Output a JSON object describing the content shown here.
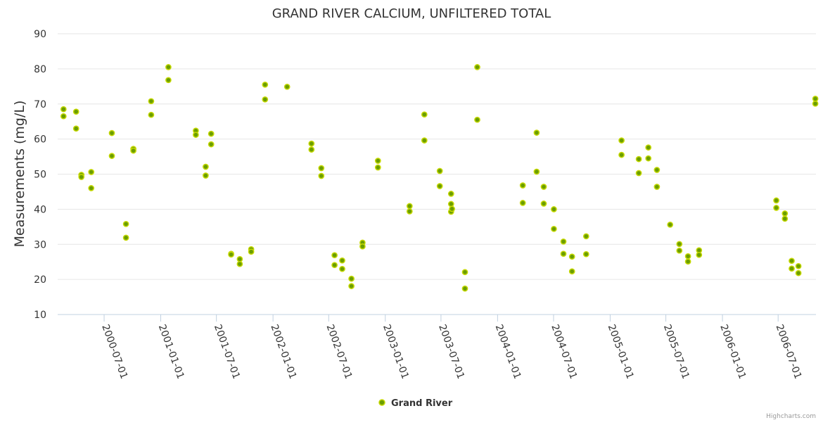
{
  "chart_data": {
    "type": "scatter",
    "title": "GRAND RIVER CALCIUM, UNFILTERED TOTAL",
    "ylabel": "Measurements (mg/L)",
    "xlabel": "",
    "ylim": [
      10,
      90
    ],
    "y_ticks": [
      "10",
      "20",
      "30",
      "40",
      "50",
      "60",
      "70",
      "80",
      "90"
    ],
    "x_ticks": [
      "2000-07-01",
      "2001-01-01",
      "2001-07-01",
      "2002-01-01",
      "2002-07-01",
      "2003-01-01",
      "2003-07-01",
      "2004-01-01",
      "2004-07-01",
      "2005-01-01",
      "2005-07-01",
      "2006-01-01",
      "2006-07-01"
    ],
    "xlim": [
      "2000-02-01",
      "2006-11-01"
    ],
    "grid": true,
    "legend": "bottom-center",
    "series": [
      {
        "name": "Grand River",
        "color": "#6b9e00",
        "points": [
          [
            "2000-02-20",
            68.5
          ],
          [
            "2000-02-20",
            66.5
          ],
          [
            "2000-04-01",
            67.8
          ],
          [
            "2000-04-01",
            63.0
          ],
          [
            "2000-04-18",
            49.8
          ],
          [
            "2000-04-18",
            49.2
          ],
          [
            "2000-05-20",
            50.6
          ],
          [
            "2000-05-20",
            46.0
          ],
          [
            "2000-07-26",
            61.7
          ],
          [
            "2000-07-26",
            55.2
          ],
          [
            "2000-09-10",
            35.8
          ],
          [
            "2000-09-10",
            31.9
          ],
          [
            "2000-10-04",
            57.2
          ],
          [
            "2000-10-04",
            56.7
          ],
          [
            "2000-12-01",
            70.8
          ],
          [
            "2000-12-01",
            66.9
          ],
          [
            "2001-01-26",
            80.5
          ],
          [
            "2001-01-26",
            76.8
          ],
          [
            "2001-04-25",
            62.4
          ],
          [
            "2001-04-25",
            61.2
          ],
          [
            "2001-05-27",
            52.1
          ],
          [
            "2001-05-27",
            49.6
          ],
          [
            "2001-06-14",
            61.5
          ],
          [
            "2001-06-14",
            58.5
          ],
          [
            "2001-08-18",
            27.3
          ],
          [
            "2001-08-18",
            27.1
          ],
          [
            "2001-09-15",
            25.8
          ],
          [
            "2001-09-15",
            24.4
          ],
          [
            "2001-10-22",
            28.6
          ],
          [
            "2001-10-22",
            27.9
          ],
          [
            "2001-12-06",
            75.5
          ],
          [
            "2001-12-06",
            71.3
          ],
          [
            "2002-02-16",
            74.9
          ],
          [
            "2002-05-06",
            58.7
          ],
          [
            "2002-05-06",
            57.0
          ],
          [
            "2002-06-07",
            51.7
          ],
          [
            "2002-06-07",
            49.5
          ],
          [
            "2002-07-20",
            26.9
          ],
          [
            "2002-07-20",
            24.1
          ],
          [
            "2002-08-14",
            25.4
          ],
          [
            "2002-08-14",
            23.0
          ],
          [
            "2002-09-13",
            20.2
          ],
          [
            "2002-09-13",
            18.1
          ],
          [
            "2002-10-19",
            30.5
          ],
          [
            "2002-10-19",
            29.4
          ],
          [
            "2002-12-08",
            53.8
          ],
          [
            "2002-12-08",
            51.9
          ],
          [
            "2003-03-21",
            40.9
          ],
          [
            "2003-03-21",
            39.4
          ],
          [
            "2003-05-08",
            67.0
          ],
          [
            "2003-05-08",
            59.6
          ],
          [
            "2003-06-27",
            50.9
          ],
          [
            "2003-06-27",
            46.6
          ],
          [
            "2003-08-03",
            44.4
          ],
          [
            "2003-08-03",
            41.5
          ],
          [
            "2003-08-03",
            39.3
          ],
          [
            "2003-08-06",
            40.1
          ],
          [
            "2003-09-17",
            22.1
          ],
          [
            "2003-09-17",
            17.4
          ],
          [
            "2003-10-27",
            80.5
          ],
          [
            "2003-10-27",
            65.5
          ],
          [
            "2004-03-23",
            46.8
          ],
          [
            "2004-03-23",
            41.8
          ],
          [
            "2004-05-07",
            61.8
          ],
          [
            "2004-05-07",
            50.7
          ],
          [
            "2004-05-30",
            46.4
          ],
          [
            "2004-05-30",
            41.6
          ],
          [
            "2004-07-02",
            40.0
          ],
          [
            "2004-07-02",
            34.4
          ],
          [
            "2004-08-02",
            30.8
          ],
          [
            "2004-08-02",
            27.3
          ],
          [
            "2004-08-30",
            26.5
          ],
          [
            "2004-08-30",
            22.3
          ],
          [
            "2004-10-15",
            32.3
          ],
          [
            "2004-10-15",
            27.2
          ],
          [
            "2005-02-07",
            59.6
          ],
          [
            "2005-02-07",
            55.5
          ],
          [
            "2005-04-04",
            54.3
          ],
          [
            "2005-04-04",
            50.3
          ],
          [
            "2005-05-05",
            57.6
          ],
          [
            "2005-05-05",
            54.5
          ],
          [
            "2005-06-02",
            51.2
          ],
          [
            "2005-06-02",
            46.4
          ],
          [
            "2005-07-15",
            35.6
          ],
          [
            "2005-08-14",
            30.1
          ],
          [
            "2005-08-14",
            28.2
          ],
          [
            "2005-09-11",
            26.6
          ],
          [
            "2005-09-11",
            25.1
          ],
          [
            "2005-10-17",
            28.3
          ],
          [
            "2005-10-17",
            27.0
          ],
          [
            "2006-06-25",
            42.5
          ],
          [
            "2006-06-25",
            40.4
          ],
          [
            "2006-07-23",
            38.8
          ],
          [
            "2006-07-23",
            37.3
          ],
          [
            "2006-08-14",
            25.3
          ],
          [
            "2006-08-14",
            23.1
          ],
          [
            "2006-09-05",
            23.8
          ],
          [
            "2006-09-05",
            21.8
          ],
          [
            "2006-10-30",
            71.5
          ],
          [
            "2006-10-30",
            70.1
          ]
        ]
      }
    ],
    "credit": "Highcharts.com"
  }
}
